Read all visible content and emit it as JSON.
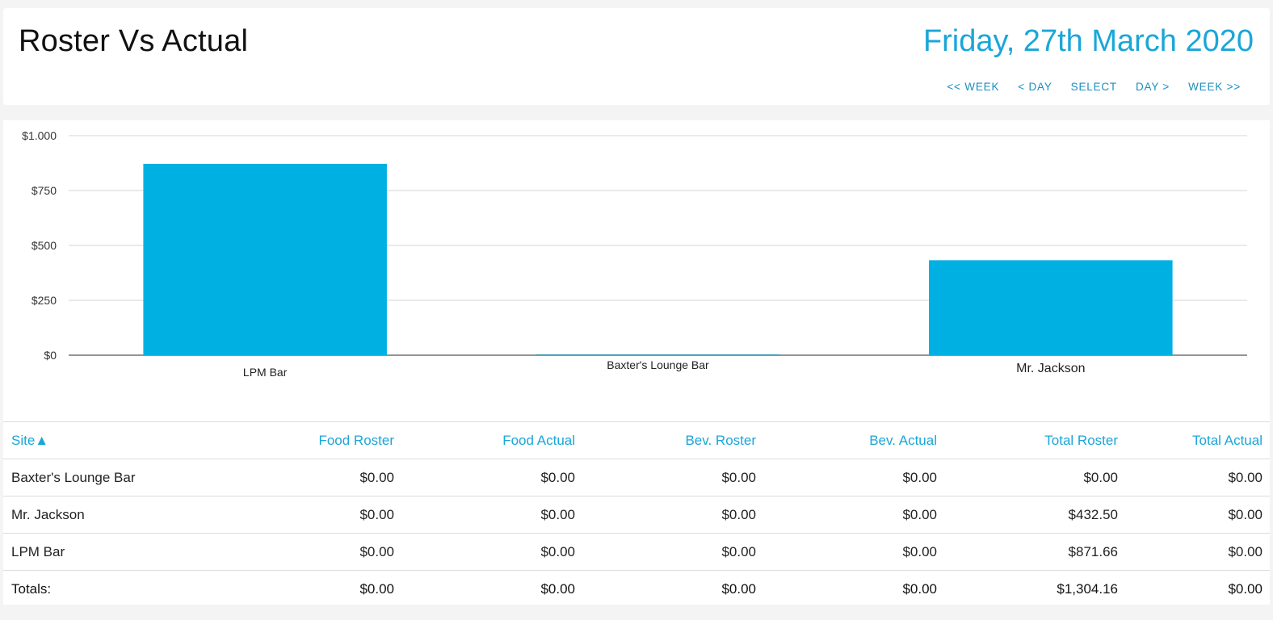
{
  "header": {
    "title": "Roster Vs Actual",
    "date": "Friday, 27th March 2020",
    "nav": [
      "<< WEEK",
      "< DAY",
      "SELECT",
      "DAY >",
      "WEEK >>"
    ]
  },
  "colors": {
    "accent": "#1aa6d8",
    "bar": "#00b0e2"
  },
  "chart_data": {
    "type": "bar",
    "categories": [
      "LPM Bar",
      "Baxter's Lounge Bar",
      "Mr. Jackson"
    ],
    "values": [
      871.66,
      0,
      432.5
    ],
    "ylim": [
      0,
      1000
    ],
    "yticks": [
      0,
      250,
      500,
      750,
      1000
    ],
    "ytick_labels": [
      "$0",
      "$250",
      "$500",
      "$750",
      "$1.000"
    ],
    "grid": true,
    "title": "",
    "xlabel": "",
    "ylabel": ""
  },
  "table": {
    "columns": [
      "Site▲",
      "Food Roster",
      "Food Actual",
      "Bev. Roster",
      "Bev. Actual",
      "Total Roster",
      "Total Actual"
    ],
    "rows": [
      [
        "Baxter's Lounge Bar",
        "$0.00",
        "$0.00",
        "$0.00",
        "$0.00",
        "$0.00",
        "$0.00"
      ],
      [
        "Mr. Jackson",
        "$0.00",
        "$0.00",
        "$0.00",
        "$0.00",
        "$432.50",
        "$0.00"
      ],
      [
        "LPM Bar",
        "$0.00",
        "$0.00",
        "$0.00",
        "$0.00",
        "$871.66",
        "$0.00"
      ]
    ],
    "totals": [
      "Totals:",
      "$0.00",
      "$0.00",
      "$0.00",
      "$0.00",
      "$1,304.16",
      "$0.00"
    ]
  }
}
